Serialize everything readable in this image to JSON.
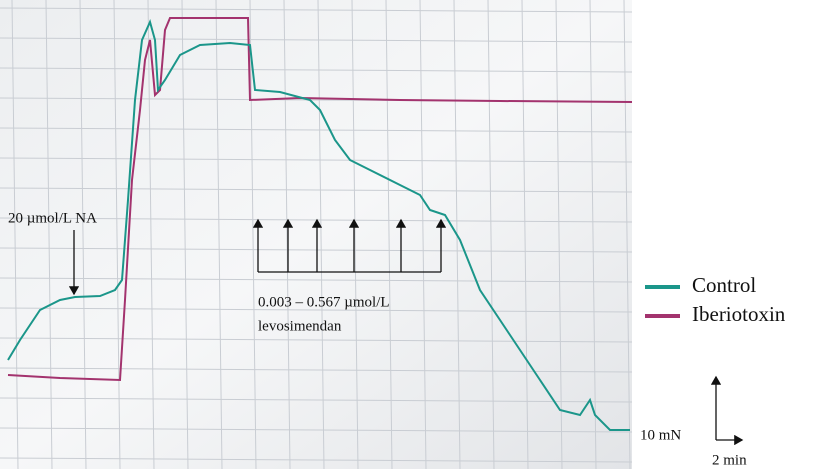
{
  "annotations": {
    "na": "20 µmol/L NA",
    "dose_range": "0.003 – 0.567 µmol/L",
    "drug": "levosimendan"
  },
  "legend": [
    "Control",
    "Iberiotoxin"
  ],
  "scale_bar": {
    "force": "10 mN",
    "time": "2 min"
  }
}
